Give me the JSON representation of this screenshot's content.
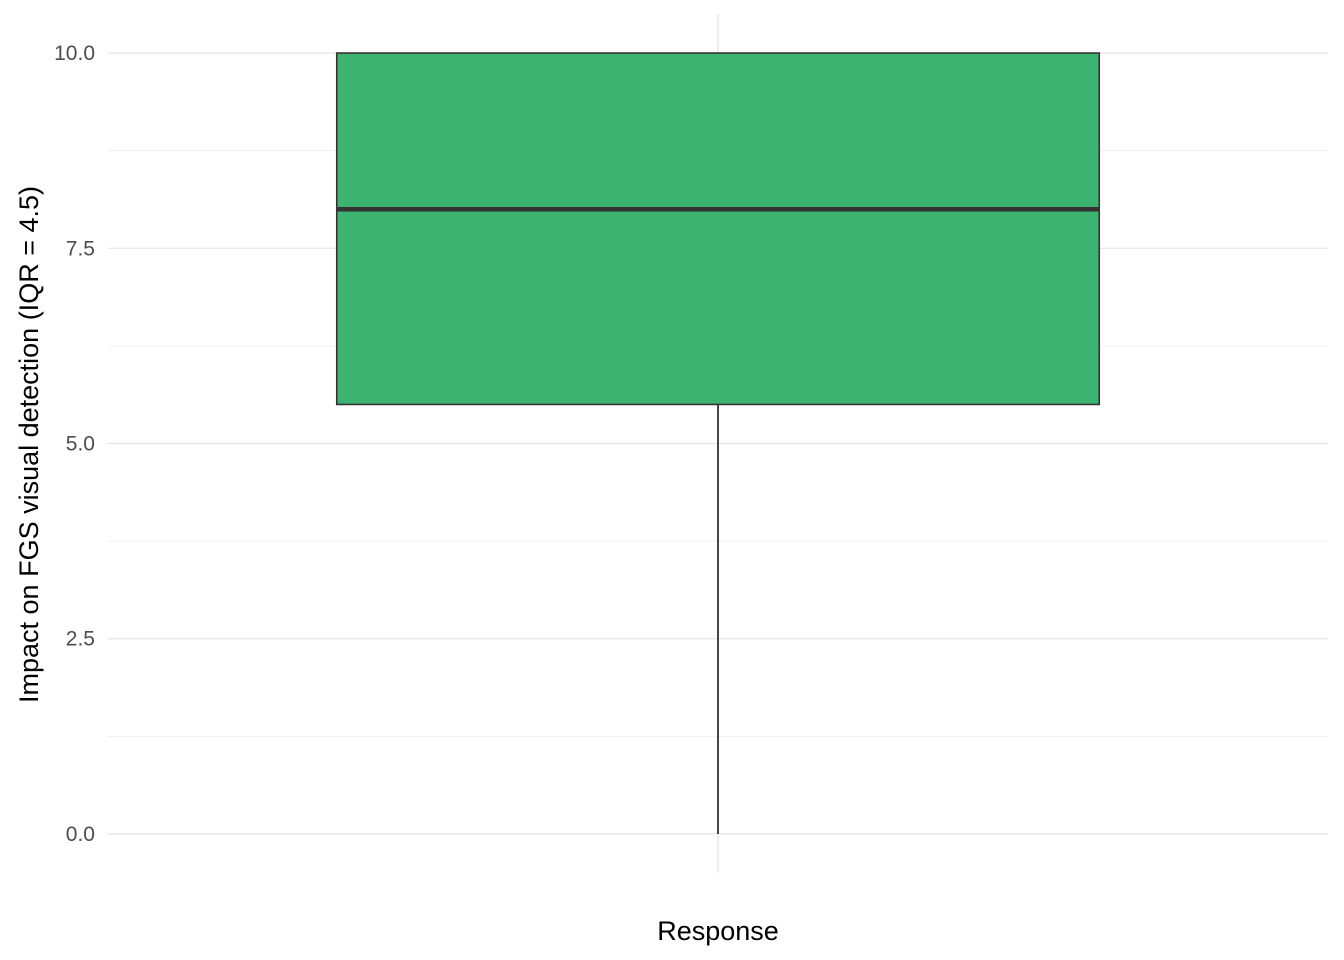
{
  "chart_data": {
    "type": "boxplot",
    "title": "",
    "xlabel": "Response",
    "ylabel": "Impact on FGS visual detection (IQR = 4.5)",
    "categories": [
      ""
    ],
    "boxes": [
      {
        "category": "",
        "whisker_low": 0.0,
        "q1": 5.5,
        "median": 8.0,
        "q3": 10.0,
        "whisker_high": 10.0
      }
    ],
    "ylim": [
      -0.5,
      10.5
    ],
    "yticks": [
      "0.0",
      "2.5",
      "5.0",
      "7.5",
      "10.0"
    ],
    "ytick_values": [
      0,
      2.5,
      5,
      7.5,
      10
    ],
    "grid": true,
    "legend": "none",
    "colors": {
      "box_fill": "#3CB371",
      "box_stroke": "#333333",
      "median_line": "#333333",
      "whisker": "#1a1a1a",
      "grid_major": "#e5e5e5",
      "grid_minor": "#f0f0f0"
    }
  }
}
